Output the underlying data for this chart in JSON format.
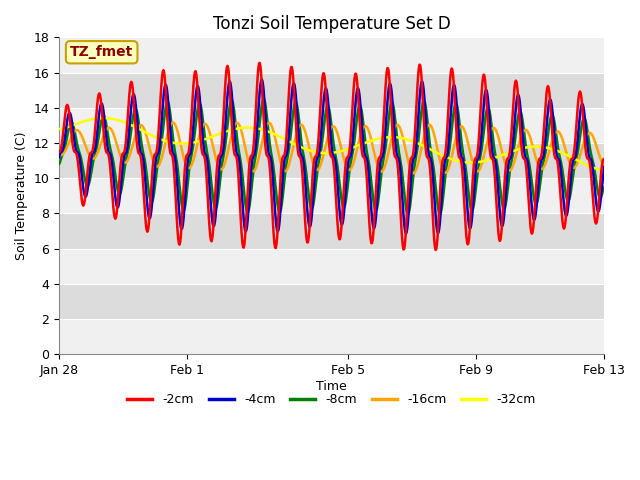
{
  "title": "Tonzi Soil Temperature Set D",
  "xlabel": "Time",
  "ylabel": "Soil Temperature (C)",
  "ylim": [
    0,
    18
  ],
  "yticks": [
    0,
    2,
    4,
    6,
    8,
    10,
    12,
    14,
    16,
    18
  ],
  "annotation_text": "TZ_fmet",
  "annotation_color": "#8B0000",
  "annotation_bg": "#FFFFC0",
  "annotation_border": "#C8A000",
  "series_colors": {
    "-2cm": "#FF0000",
    "-4cm": "#0000CD",
    "-8cm": "#008000",
    "-16cm": "#FFA500",
    "-32cm": "#FFFF00"
  },
  "background_color": "#FFFFFF",
  "plot_bg_light": "#F0F0F0",
  "plot_bg_dark": "#DCDCDC",
  "grid_color": "#FFFFFF",
  "date_ticks": [
    "Jan 28",
    "Feb 1",
    "Feb 5",
    "Feb 9",
    "Feb 13"
  ],
  "date_tick_positions": [
    0,
    4,
    9,
    13,
    17
  ],
  "n_days": 17,
  "pts_per_day": 48
}
